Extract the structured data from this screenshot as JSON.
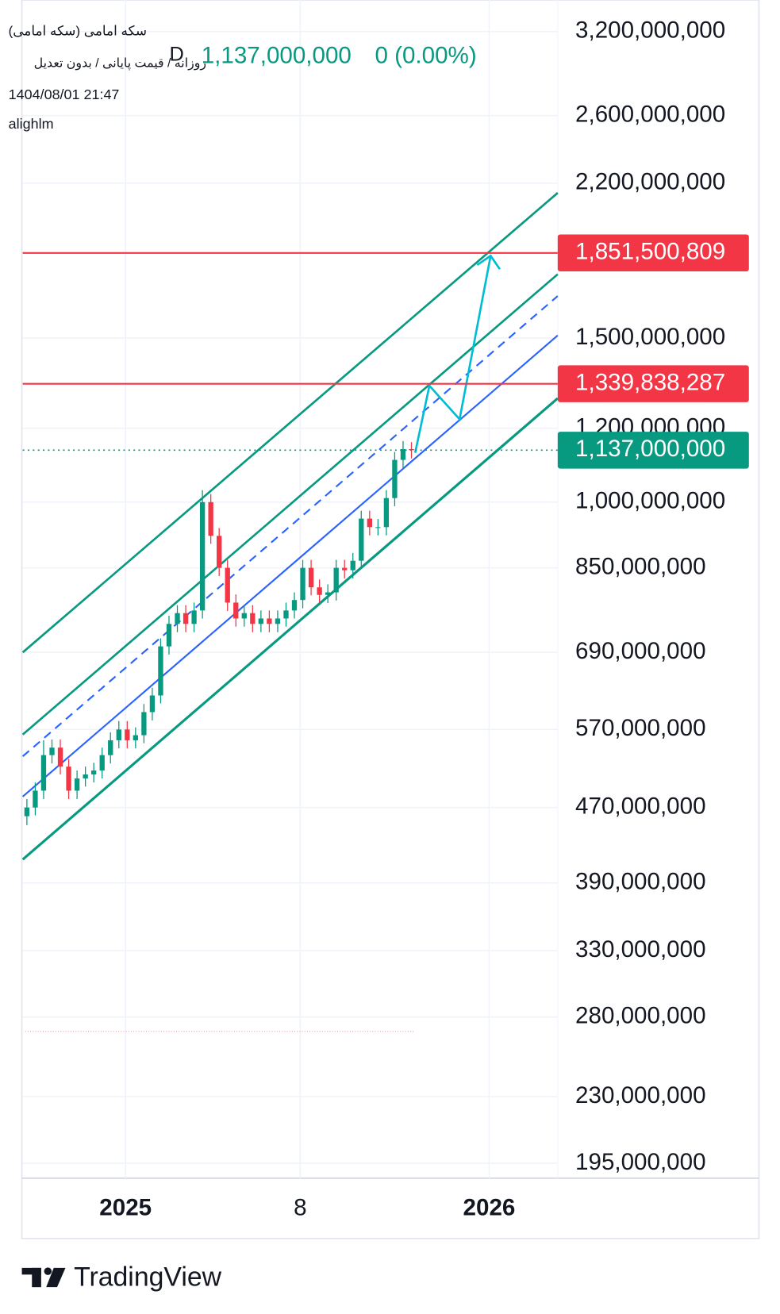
{
  "header": {
    "symbol": "سکه امامی (سکه امامی)",
    "description": "روزانه / قیمت پایانی / بدون تعدیل",
    "interval": "D",
    "price": "1,137,000,000",
    "change": "0 (0.00%)",
    "datetime": "1404/08/01 21:47",
    "author": "alighlm"
  },
  "footer": {
    "brand": "TradingView"
  },
  "chart_data": {
    "type": "candlestick",
    "log_scale": true,
    "grid": true,
    "up_color": "#089981",
    "down_color": "#f23645",
    "open": [
      460000000,
      470000000,
      490000000,
      535000000,
      545000000,
      520000000,
      490000000,
      505000000,
      510000000,
      515000000,
      535000000,
      555000000,
      570000000,
      555000000,
      562000000,
      595000000,
      620000000,
      700000000,
      740000000,
      760000000,
      740000000,
      765000000,
      1000000000,
      920000000,
      850000000,
      780000000,
      750000000,
      760000000,
      740000000,
      750000000,
      740000000,
      750000000,
      765000000,
      785000000,
      850000000,
      810000000,
      795000000,
      800000000,
      850000000,
      845000000,
      865000000,
      960000000,
      940000000,
      940000000,
      1010000000,
      1110000000,
      1140000000
    ],
    "high": [
      480000000,
      500000000,
      555000000,
      556000000,
      556000000,
      530000000,
      515000000,
      520000000,
      525000000,
      545000000,
      566000000,
      582000000,
      582000000,
      573000000,
      607000000,
      632000000,
      714000000,
      755000000,
      775000000,
      775000000,
      780000000,
      1030000000,
      1020000000,
      938000000,
      867000000,
      796000000,
      775000000,
      775000000,
      765000000,
      765000000,
      765000000,
      780000000,
      800000000,
      867000000,
      867000000,
      826000000,
      816000000,
      867000000,
      867000000,
      882000000,
      979000000,
      979000000,
      959000000,
      1030000000,
      1132000000,
      1163000000,
      1160000000
    ],
    "low": [
      450000000,
      461000000,
      480000000,
      524000000,
      510000000,
      480000000,
      480000000,
      495000000,
      500000000,
      505000000,
      524000000,
      544000000,
      544000000,
      544000000,
      551000000,
      583000000,
      608000000,
      686000000,
      725000000,
      725000000,
      725000000,
      750000000,
      902000000,
      833000000,
      764000000,
      735000000,
      735000000,
      725000000,
      725000000,
      725000000,
      725000000,
      735000000,
      750000000,
      769000000,
      794000000,
      779000000,
      779000000,
      784000000,
      828000000,
      828000000,
      848000000,
      921000000,
      921000000,
      921000000,
      990000000,
      1088000000,
      1114000000
    ],
    "close": [
      470000000,
      490000000,
      535000000,
      545000000,
      520000000,
      490000000,
      505000000,
      510000000,
      515000000,
      535000000,
      555000000,
      570000000,
      555000000,
      562000000,
      595000000,
      620000000,
      700000000,
      740000000,
      760000000,
      740000000,
      765000000,
      1000000000,
      920000000,
      850000000,
      780000000,
      750000000,
      760000000,
      740000000,
      750000000,
      740000000,
      750000000,
      765000000,
      785000000,
      850000000,
      810000000,
      795000000,
      800000000,
      850000000,
      845000000,
      865000000,
      960000000,
      940000000,
      940000000,
      1010000000,
      1110000000,
      1140000000,
      1137000000
    ],
    "xlim": [
      0,
      64
    ],
    "xticks": [
      {
        "value": 12.3,
        "label": "2025"
      },
      {
        "value": 33.2,
        "label": "8"
      },
      {
        "value": 55.8,
        "label": "2026"
      }
    ],
    "ylim": [
      188000000,
      3460000000
    ],
    "yticks": [
      {
        "value": 195000000,
        "label": "195,000,000"
      },
      {
        "value": 230000000,
        "label": "230,000,000"
      },
      {
        "value": 280000000,
        "label": "280,000,000"
      },
      {
        "value": 330000000,
        "label": "330,000,000"
      },
      {
        "value": 390000000,
        "label": "390,000,000"
      },
      {
        "value": 470000000,
        "label": "470,000,000"
      },
      {
        "value": 570000000,
        "label": "570,000,000"
      },
      {
        "value": 690000000,
        "label": "690,000,000"
      },
      {
        "value": 850000000,
        "label": "850,000,000"
      },
      {
        "value": 1000000000,
        "label": "1,000,000,000"
      },
      {
        "value": 1200000000,
        "label": "1,200,000,000"
      },
      {
        "value": 1500000000,
        "label": "1,500,000,000"
      },
      {
        "value": 2200000000,
        "label": "2,200,000,000"
      },
      {
        "value": 2600000000,
        "label": "2,600,000,000"
      },
      {
        "value": 3200000000,
        "label": "3,200,000,000"
      }
    ],
    "price_lines": [
      {
        "value": 1851500809,
        "label": "1,851,500,809",
        "color": "#f23645",
        "dotted": false
      },
      {
        "value": 1339838287,
        "label": "1,339,838,287",
        "color": "#f23645",
        "dotted": false
      },
      {
        "value": 1137000000,
        "label": "1,137,000,000",
        "color": "#089981",
        "dotted": true
      }
    ]
  }
}
